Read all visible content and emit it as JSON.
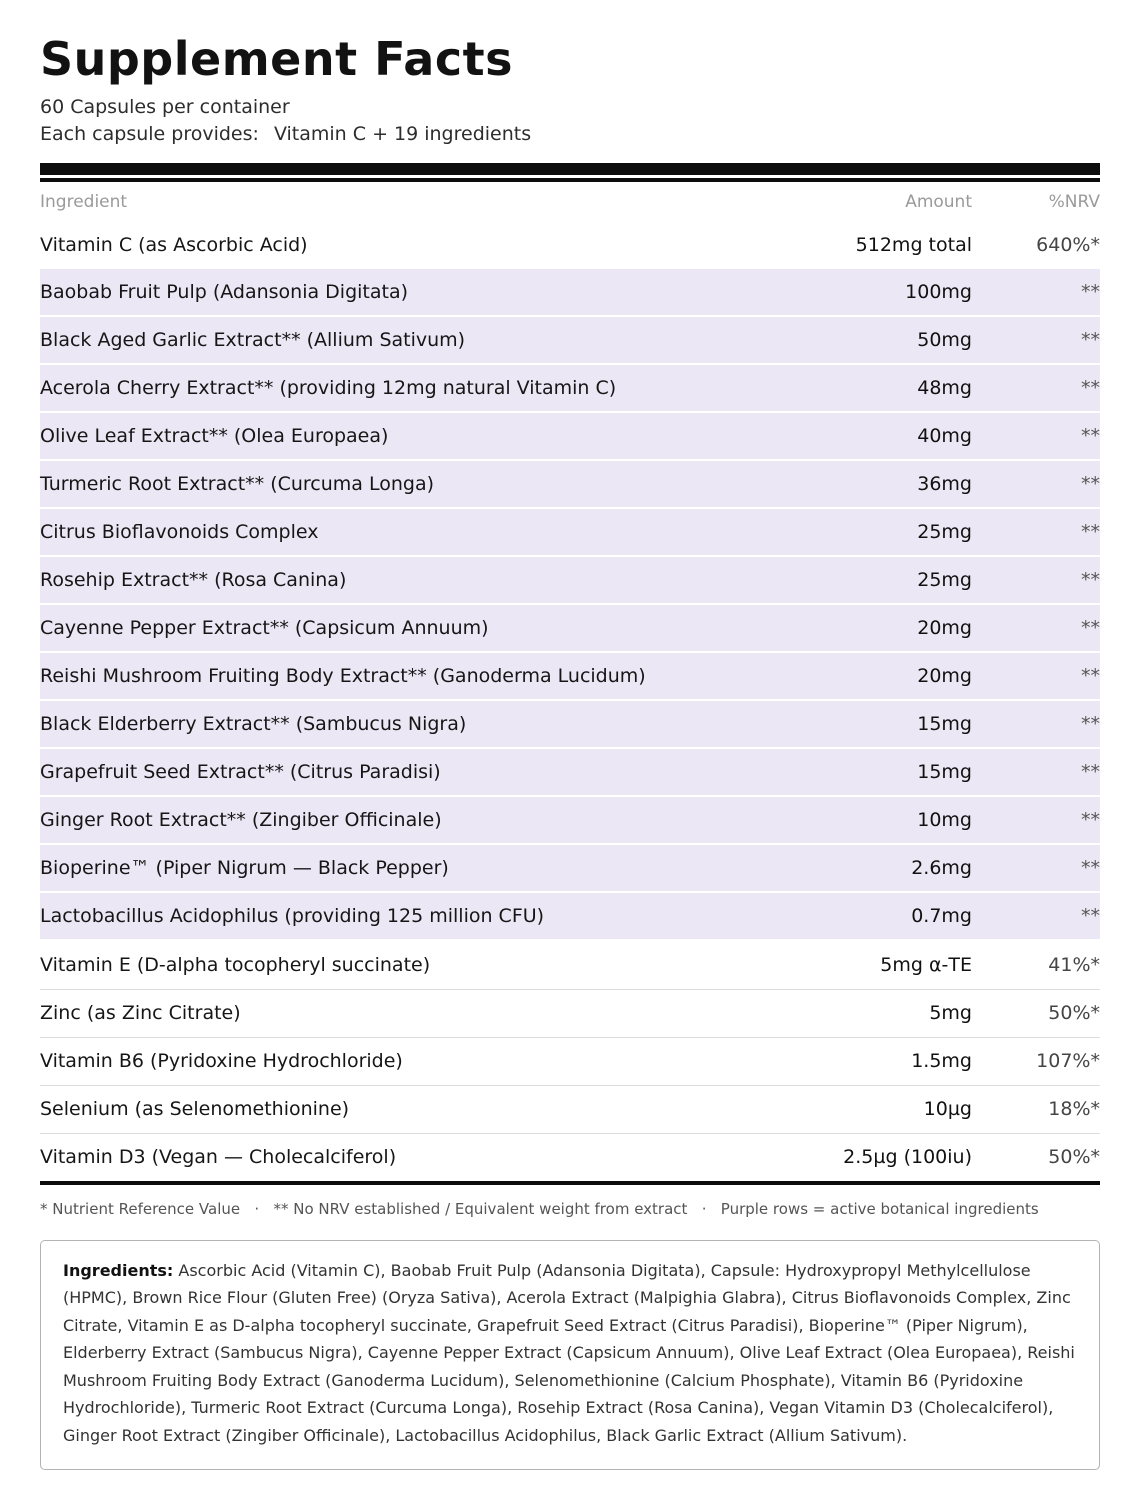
{
  "header": {
    "title": "Supplement Facts",
    "servings": "60 Capsules per container",
    "provides_label": "Each capsule provides:",
    "provides_value": "Vitamin C + 19 ingredients"
  },
  "table": {
    "columns": {
      "ingredient": "Ingredient",
      "amount": "Amount",
      "nrv": "%NRV"
    },
    "rows": [
      {
        "name": "Vitamin C (as Ascorbic Acid)",
        "amount": "512mg total",
        "nrv": "640%*",
        "purple": false
      },
      {
        "name": "Baobab Fruit Pulp (Adansonia Digitata)",
        "amount": "100mg",
        "nrv": "**",
        "purple": true
      },
      {
        "name": "Black Aged Garlic Extract** (Allium Sativum)",
        "amount": "50mg",
        "nrv": "**",
        "purple": true
      },
      {
        "name": "Acerola Cherry Extract** (providing 12mg natural Vitamin C)",
        "amount": "48mg",
        "nrv": "**",
        "purple": true
      },
      {
        "name": "Olive Leaf Extract** (Olea Europaea)",
        "amount": "40mg",
        "nrv": "**",
        "purple": true
      },
      {
        "name": "Turmeric Root Extract** (Curcuma Longa)",
        "amount": "36mg",
        "nrv": "**",
        "purple": true
      },
      {
        "name": "Citrus Bioflavonoids Complex",
        "amount": "25mg",
        "nrv": "**",
        "purple": true
      },
      {
        "name": "Rosehip Extract** (Rosa Canina)",
        "amount": "25mg",
        "nrv": "**",
        "purple": true
      },
      {
        "name": "Cayenne Pepper Extract** (Capsicum Annuum)",
        "amount": "20mg",
        "nrv": "**",
        "purple": true
      },
      {
        "name": "Reishi Mushroom Fruiting Body Extract** (Ganoderma Lucidum)",
        "amount": "20mg",
        "nrv": "**",
        "purple": true
      },
      {
        "name": "Black Elderberry Extract** (Sambucus Nigra)",
        "amount": "15mg",
        "nrv": "**",
        "purple": true
      },
      {
        "name": "Grapefruit Seed Extract** (Citrus Paradisi)",
        "amount": "15mg",
        "nrv": "**",
        "purple": true
      },
      {
        "name": "Ginger Root Extract** (Zingiber Officinale)",
        "amount": "10mg",
        "nrv": "**",
        "purple": true
      },
      {
        "name": "Bioperine™ (Piper Nigrum — Black Pepper)",
        "amount": "2.6mg",
        "nrv": "**",
        "purple": true
      },
      {
        "name": "Lactobacillus Acidophilus (providing 125 million CFU)",
        "amount": "0.7mg",
        "nrv": "**",
        "purple": true
      },
      {
        "name": "Vitamin E (D-alpha tocopheryl succinate)",
        "amount": "5mg α-TE",
        "nrv": "41%*",
        "purple": false
      },
      {
        "name": "Zinc (as Zinc Citrate)",
        "amount": "5mg",
        "nrv": "50%*",
        "purple": false
      },
      {
        "name": "Vitamin B6 (Pyridoxine Hydrochloride)",
        "amount": "1.5mg",
        "nrv": "107%*",
        "purple": false
      },
      {
        "name": "Selenium (as Selenomethionine)",
        "amount": "10µg",
        "nrv": "18%*",
        "purple": false
      },
      {
        "name": "Vitamin D3 (Vegan — Cholecalciferol)",
        "amount": "2.5µg (100iu)",
        "nrv": "50%*",
        "purple": false
      }
    ]
  },
  "footnote": "* Nutrient Reference Value   ·   ** No NRV established / Equivalent weight from extract   ·   Purple rows = active botanical ingredients",
  "ingredients_box": {
    "label": "Ingredients:",
    "text": "Ascorbic Acid (Vitamin C), Baobab Fruit Pulp (Adansonia Digitata), Capsule: Hydroxypropyl Methylcellulose (HPMC), Brown Rice Flour (Gluten Free) (Oryza Sativa), Acerola Extract (Malpighia Glabra), Citrus Bioflavonoids Complex, Zinc Citrate, Vitamin E as D-alpha tocopheryl succinate, Grapefruit Seed Extract (Citrus Paradisi), Bioperine™ (Piper Nigrum), Elderberry Extract (Sambucus Nigra), Cayenne Pepper Extract (Capsicum Annuum), Olive Leaf Extract (Olea Europaea), Reishi Mushroom Fruiting Body Extract (Ganoderma Lucidum), Selenomethionine (Calcium Phosphate), Vitamin B6 (Pyridoxine Hydrochloride), Turmeric Root Extract (Curcuma Longa), Rosehip Extract (Rosa Canina), Vegan Vitamin D3 (Cholecalciferol), Ginger Root Extract (Zingiber Officinale), Lactobacillus Acidophilus, Black Garlic Extract (Allium Sativum)."
  },
  "colors": {
    "purple_row": "#ece7f4",
    "bar": "#0c0c0c",
    "header_text": "#9a9a9a"
  }
}
